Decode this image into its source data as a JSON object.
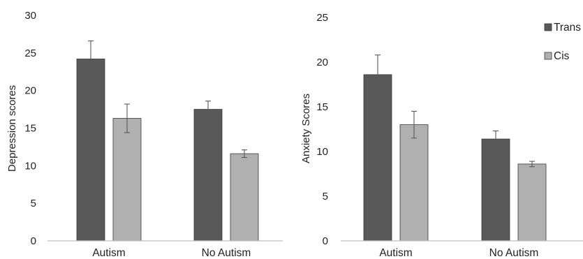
{
  "colors": {
    "trans": "#595959",
    "cis": "#b0b0b0",
    "axis": "#bfbfbf",
    "error": "#595959"
  },
  "legend": {
    "placement": "top-right",
    "items": [
      "Trans",
      "Cis"
    ]
  },
  "chart_data": [
    {
      "type": "bar",
      "title": "",
      "xlabel": "",
      "ylabel": "Depression scores",
      "ylim": [
        0,
        30
      ],
      "yticks": [
        0,
        5,
        10,
        15,
        20,
        25,
        30
      ],
      "categories": [
        "Autism",
        "No Autism"
      ],
      "grid": false,
      "series": [
        {
          "name": "Trans",
          "values": [
            24.2,
            17.5
          ],
          "error": [
            2.4,
            1.1
          ]
        },
        {
          "name": "Cis",
          "values": [
            16.3,
            11.6
          ],
          "error": [
            1.9,
            0.5
          ]
        }
      ]
    },
    {
      "type": "bar",
      "title": "",
      "xlabel": "",
      "ylabel": "Anxiety Scores",
      "ylim": [
        0,
        25
      ],
      "yticks": [
        0,
        5,
        10,
        15,
        20,
        25
      ],
      "categories": [
        "Autism",
        "No Autism"
      ],
      "grid": false,
      "series": [
        {
          "name": "Trans",
          "values": [
            18.6,
            11.4
          ],
          "error": [
            2.2,
            0.9
          ]
        },
        {
          "name": "Cis",
          "values": [
            13.0,
            8.6
          ],
          "error": [
            1.5,
            0.3
          ]
        }
      ]
    }
  ]
}
